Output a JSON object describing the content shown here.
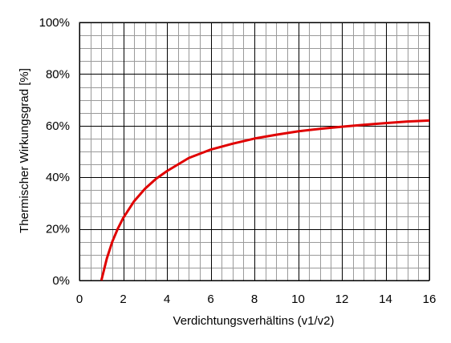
{
  "chart_data": {
    "type": "line",
    "title": "",
    "xlabel": "Verdichtungsverhältins (v1/v2)",
    "ylabel": "Thermischer Wirkungsgrad [%]",
    "xlim": [
      0,
      16
    ],
    "ylim": [
      0,
      100
    ],
    "x_ticks": [
      0,
      2,
      4,
      6,
      8,
      10,
      12,
      14,
      16
    ],
    "y_ticks": [
      0,
      20,
      40,
      60,
      80,
      100
    ],
    "y_tick_labels": [
      "0%",
      "20%",
      "40%",
      "60%",
      "80%",
      "100%"
    ],
    "x_minor_step": 0.5,
    "y_minor_step": 5,
    "grid": true,
    "legend": "none",
    "series": [
      {
        "color": "#e00000",
        "x": [
          1,
          1.25,
          1.5,
          1.75,
          2,
          2.5,
          3,
          3.5,
          4,
          5,
          6,
          7,
          8,
          9,
          10,
          11,
          12,
          13,
          14,
          15,
          16
        ],
        "y": [
          0,
          8.5,
          15,
          20.0,
          24.2,
          30.7,
          35.6,
          39.4,
          42.4,
          47.5,
          50.7,
          53,
          55,
          56.5,
          57.8,
          58.8,
          59.6,
          60.3,
          61,
          61.6,
          62
        ]
      }
    ]
  }
}
